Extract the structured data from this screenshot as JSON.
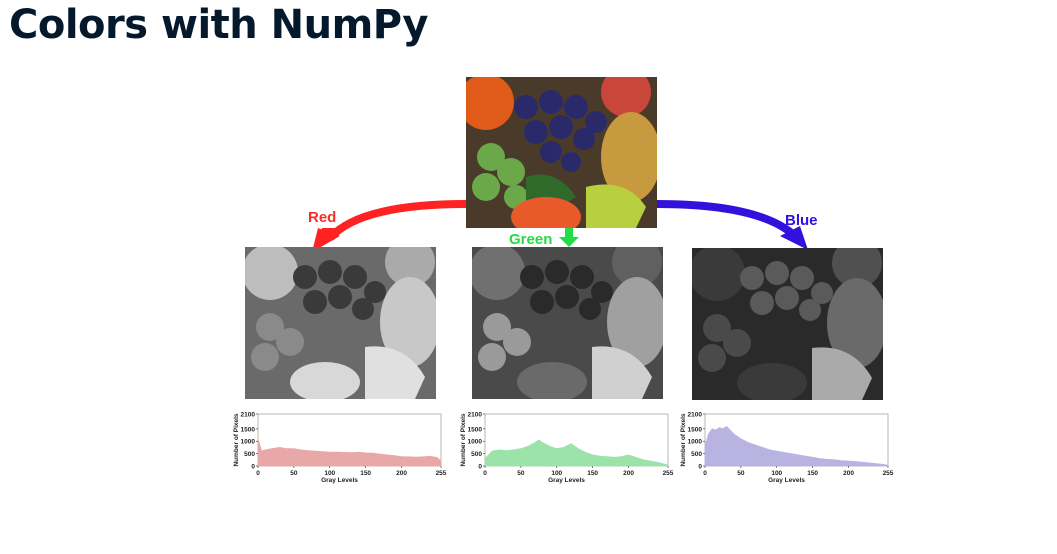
{
  "title": "Colors with NumPy",
  "channels": [
    {
      "label": "Red",
      "color": "#ff2a2a",
      "fill": "#e8a8a8"
    },
    {
      "label": "Green",
      "color": "#22dd44",
      "fill": "#9be3a8"
    },
    {
      "label": "Blue",
      "color": "#3311dd",
      "fill": "#b8b3e0"
    }
  ],
  "histogram": {
    "ylabel": "Number of Pixels",
    "xlabel": "Gray Levels",
    "yticks": [
      "2100",
      "1500",
      "1000",
      "500",
      "0"
    ],
    "xticks": [
      "0",
      "50",
      "100",
      "150",
      "200",
      "255"
    ]
  },
  "chart_data": [
    {
      "type": "area",
      "series": [
        {
          "name": "Red",
          "x": [
            0,
            5,
            10,
            20,
            30,
            40,
            50,
            60,
            70,
            80,
            90,
            100,
            110,
            120,
            130,
            140,
            150,
            160,
            170,
            180,
            190,
            200,
            210,
            220,
            230,
            240,
            250,
            255
          ],
          "y": [
            1100,
            600,
            650,
            700,
            750,
            700,
            700,
            650,
            620,
            600,
            580,
            560,
            560,
            550,
            540,
            560,
            530,
            520,
            480,
            450,
            420,
            380,
            370,
            360,
            370,
            390,
            340,
            200
          ]
        }
      ],
      "ylim": [
        0,
        2100
      ],
      "xlim": [
        0,
        255
      ]
    },
    {
      "type": "area",
      "series": [
        {
          "name": "Green",
          "x": [
            0,
            5,
            10,
            20,
            30,
            40,
            50,
            60,
            70,
            75,
            80,
            90,
            100,
            110,
            120,
            130,
            140,
            150,
            160,
            170,
            180,
            190,
            200,
            210,
            220,
            230,
            240,
            250,
            255
          ],
          "y": [
            300,
            450,
            600,
            650,
            620,
            650,
            700,
            800,
            950,
            1050,
            950,
            800,
            700,
            750,
            900,
            700,
            550,
            450,
            400,
            380,
            350,
            380,
            450,
            350,
            250,
            200,
            150,
            80,
            40
          ]
        }
      ],
      "ylim": [
        0,
        2100
      ],
      "xlim": [
        0,
        255
      ]
    },
    {
      "type": "area",
      "series": [
        {
          "name": "Blue",
          "x": [
            0,
            5,
            10,
            15,
            20,
            25,
            30,
            35,
            40,
            50,
            60,
            70,
            80,
            90,
            100,
            110,
            120,
            130,
            140,
            150,
            160,
            170,
            180,
            190,
            200,
            210,
            220,
            230,
            240,
            250,
            255
          ],
          "y": [
            800,
            1300,
            1500,
            1450,
            1550,
            1500,
            1600,
            1450,
            1300,
            1100,
            950,
            850,
            750,
            650,
            600,
            550,
            500,
            450,
            400,
            350,
            300,
            270,
            250,
            220,
            200,
            180,
            150,
            120,
            90,
            60,
            30
          ]
        }
      ],
      "ylim": [
        0,
        2100
      ],
      "xlim": [
        0,
        255
      ]
    }
  ]
}
